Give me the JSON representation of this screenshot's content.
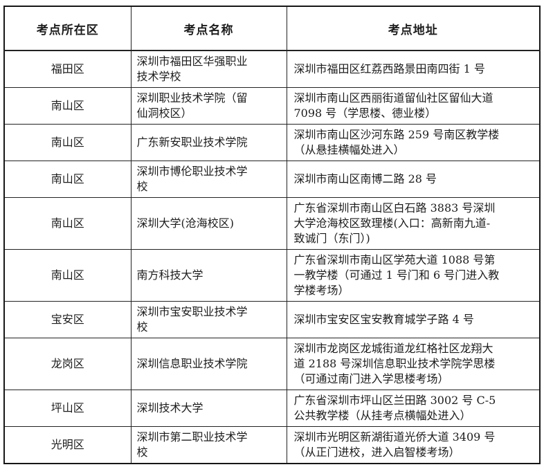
{
  "table": {
    "headers": [
      "考点所在区",
      "考点名称",
      "考点地址"
    ],
    "rows": [
      {
        "district": "福田区",
        "name": "深圳市福田区华强职业\n技术学校",
        "address": "深圳市福田区红荔西路景田南四街 1 号"
      },
      {
        "district": "南山区",
        "name": "深圳职业技术学院（留\n仙洞校区）",
        "address": "深圳市南山区西丽街道留仙社区留仙大道\n7098 号（学思楼、德业楼）"
      },
      {
        "district": "南山区",
        "name": "广东新安职业技术学院",
        "address": "深圳市南山区沙河东路 259 号南区教学楼\n（从悬挂横幅处进入）"
      },
      {
        "district": "南山区",
        "name": "深圳市博伦职业技术学\n校",
        "address": "深圳市南山区南博二路 28 号"
      },
      {
        "district": "南山区",
        "name": "深圳大学(沧海校区)",
        "address": "广东省深圳市南山区白石路 3883 号深圳\n大学沧海校区致理楼(入口：高新南九道-\n致诚门（东门）)"
      },
      {
        "district": "南山区",
        "name": "南方科技大学",
        "address": "广东省深圳市南山区学苑大道 1088 号第\n一教学楼（可通过 1 号门和 6 号门进入教\n学楼考场）"
      },
      {
        "district": "宝安区",
        "name": "深圳市宝安职业技术学\n校",
        "address": "深圳市宝安区宝安教育城学子路 4 号"
      },
      {
        "district": "龙岗区",
        "name": "深圳信息职业技术学院",
        "address": "深圳市龙岗区龙城街道龙红格社区龙翔大\n道 2188 号深圳信息职业技术学院学思楼\n（可通过南门进入学思楼考场）"
      },
      {
        "district": "坪山区",
        "name": "深圳技术大学",
        "address": "广东省深圳市坪山区兰田路 3002 号 C-5\n公共教学楼（从挂考点横幅处进入）"
      },
      {
        "district": "光明区",
        "name": "深圳市第二职业技术学\n校",
        "address": "深圳市光明区新湖街道光侨大道 3409 号\n（从正门进校，进入启智楼考场）"
      }
    ]
  }
}
